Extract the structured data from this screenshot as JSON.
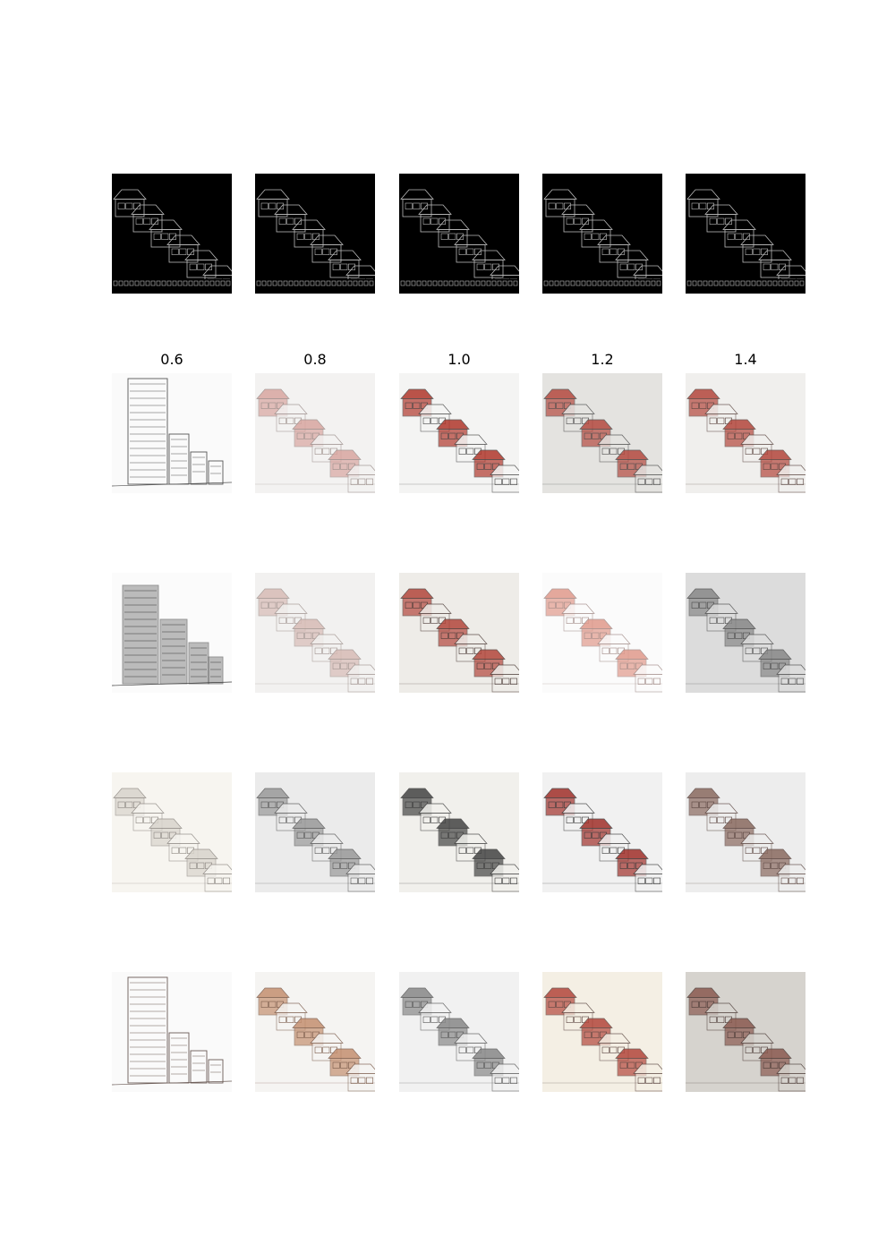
{
  "column_labels": [
    "0.6",
    "0.8",
    "1.0",
    "1.2",
    "1.4"
  ],
  "rows": [
    {
      "kind": "edge-map",
      "cells": [
        {
          "style": "edge"
        },
        {
          "style": "edge"
        },
        {
          "style": "edge"
        },
        {
          "style": "edge"
        },
        {
          "style": "edge"
        }
      ]
    },
    {
      "kind": "generated",
      "cells": [
        {
          "style": "tower-sketch",
          "bg": "#fafafa",
          "ink": "#555555",
          "accent": "#cccccc"
        },
        {
          "style": "stair",
          "bg": "#f3f2f1",
          "ink": "#9a8d8a",
          "accent": "#d9a6a0"
        },
        {
          "style": "stair",
          "bg": "#f4f4f3",
          "ink": "#444444",
          "accent": "#b0382c"
        },
        {
          "style": "stair",
          "bg": "#e4e3e0",
          "ink": "#4a4a4a",
          "accent": "#b54a40"
        },
        {
          "style": "stair",
          "bg": "#f0efed",
          "ink": "#5a4540",
          "accent": "#b3473c"
        }
      ]
    },
    {
      "kind": "generated",
      "cells": [
        {
          "style": "tower-block",
          "bg": "#fbfbfb",
          "ink": "#3a3a3a",
          "accent": "#888888"
        },
        {
          "style": "stair",
          "bg": "#f2f1f0",
          "ink": "#a09490",
          "accent": "#d8bcb6"
        },
        {
          "style": "stair",
          "bg": "#eeece8",
          "ink": "#4a3a36",
          "accent": "#b3473c"
        },
        {
          "style": "stair",
          "bg": "#fbfbfb",
          "ink": "#a08a86",
          "accent": "#e09a8c"
        },
        {
          "style": "stair",
          "bg": "#dcdcdc",
          "ink": "#4a4a4a",
          "accent": "#888888"
        }
      ]
    },
    {
      "kind": "generated",
      "cells": [
        {
          "style": "stair",
          "bg": "#f7f5f0",
          "ink": "#8a8580",
          "accent": "#d8d4cc"
        },
        {
          "style": "stair",
          "bg": "#ebebeb",
          "ink": "#555555",
          "accent": "#999999"
        },
        {
          "style": "stair",
          "bg": "#f1f0ec",
          "ink": "#3a3a3a",
          "accent": "#444444"
        },
        {
          "style": "stair",
          "bg": "#f1f1f1",
          "ink": "#3a3a3a",
          "accent": "#a0302a"
        },
        {
          "style": "stair",
          "bg": "#ededed",
          "ink": "#5a4540",
          "accent": "#8a6a60"
        }
      ]
    },
    {
      "kind": "generated",
      "cells": [
        {
          "style": "tower-sketch",
          "bg": "#fafafa",
          "ink": "#6a5a55",
          "accent": "#c9b4a8"
        },
        {
          "style": "stair",
          "bg": "#f5f4f2",
          "ink": "#7a5a4a",
          "accent": "#c49070"
        },
        {
          "style": "stair",
          "bg": "#f1f1f1",
          "ink": "#555555",
          "accent": "#888888"
        },
        {
          "style": "stair",
          "bg": "#f4efe4",
          "ink": "#5a4540",
          "accent": "#b3473c"
        },
        {
          "style": "stair",
          "bg": "#d6d3ce",
          "ink": "#4a3a36",
          "accent": "#8a5a50"
        }
      ]
    }
  ]
}
